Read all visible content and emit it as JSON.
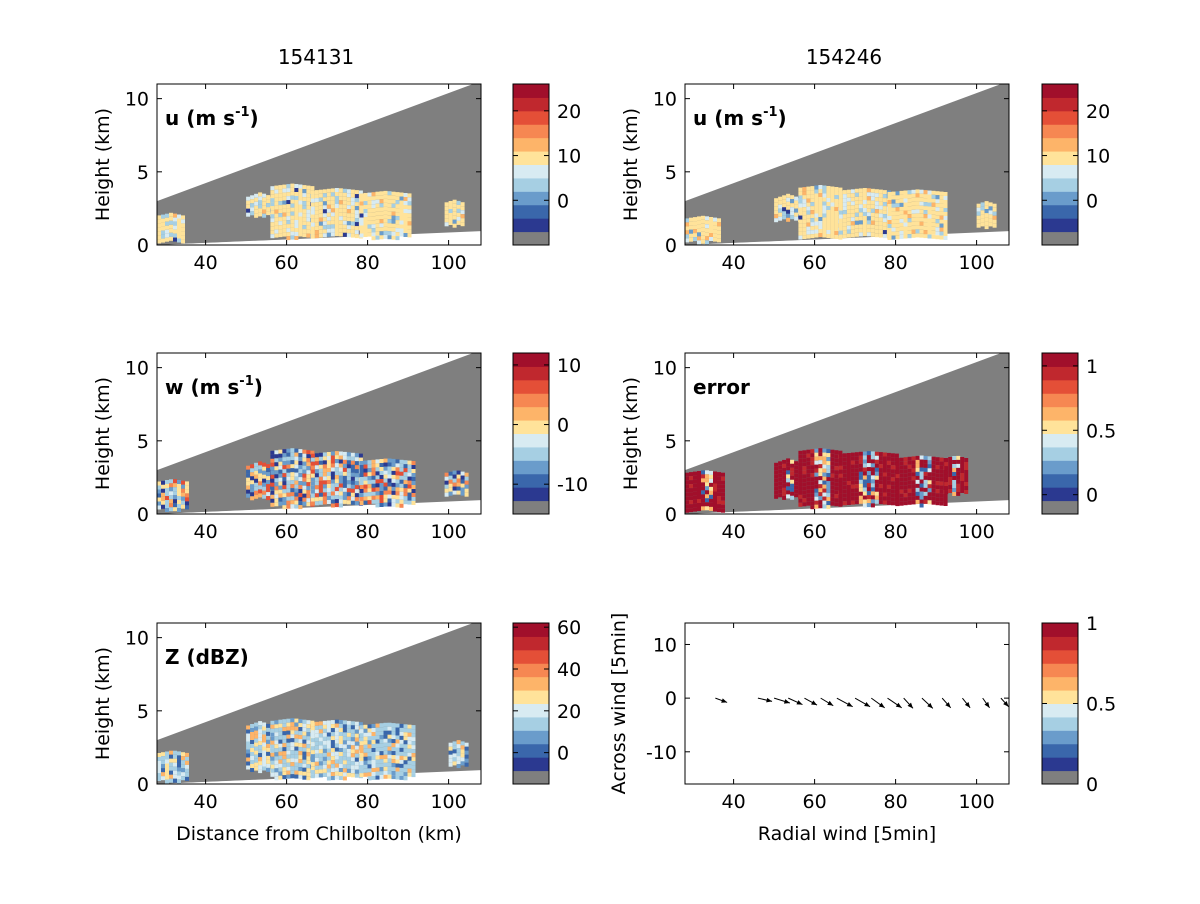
{
  "titles": [
    "154131",
    "154246"
  ],
  "colormap": [
    "#7f7f7f",
    "#2b3990",
    "#3a67ab",
    "#6a9ccb",
    "#a6cfe3",
    "#d8ebf2",
    "#ffe39a",
    "#fdb469",
    "#f68752",
    "#e44f37",
    "#c0282e",
    "#a10f2b"
  ],
  "chart_data": [
    {
      "type": "heatmap",
      "panel": "u-154131",
      "label": "u (m s",
      "label_sup": "-1",
      "ylabel": "Height (km)",
      "xlabel": "",
      "xlim": [
        28,
        108
      ],
      "ylim": [
        0,
        11
      ],
      "xticks": [
        "40",
        "60",
        "80",
        "100"
      ],
      "yticks": [
        "0",
        "5",
        "10"
      ],
      "colorbar": {
        "ticks": [
          "20",
          "10",
          "0"
        ],
        "tick_values": [
          20,
          10,
          0
        ],
        "range": [
          -10,
          26
        ]
      },
      "echo_regions": [
        [
          50,
          56,
          2.1,
          3.6
        ],
        [
          56,
          66,
          0.6,
          4.2
        ],
        [
          66,
          78,
          0.7,
          3.9
        ],
        [
          78,
          90,
          0.6,
          3.7
        ],
        [
          99,
          103,
          1.4,
          3.1
        ],
        [
          28,
          34,
          0.3,
          2.2
        ]
      ]
    },
    {
      "type": "heatmap",
      "panel": "u-154246",
      "label": "u (m s",
      "label_sup": "-1",
      "ylabel": "Height (km)",
      "xlabel": "",
      "xlim": [
        28,
        108
      ],
      "ylim": [
        0,
        11
      ],
      "xticks": [
        "40",
        "60",
        "80",
        "100"
      ],
      "yticks": [
        "0",
        "5",
        "10"
      ],
      "colorbar": {
        "ticks": [
          "20",
          "10",
          "0"
        ],
        "tick_values": [
          20,
          10,
          0
        ],
        "range": [
          -10,
          26
        ]
      },
      "echo_regions": [
        [
          50,
          56,
          1.8,
          3.5
        ],
        [
          56,
          66,
          0.6,
          4.1
        ],
        [
          66,
          78,
          0.7,
          3.9
        ],
        [
          78,
          92,
          0.6,
          3.8
        ],
        [
          100,
          104,
          1.3,
          3.0
        ],
        [
          28,
          36,
          0.3,
          2.0
        ]
      ]
    },
    {
      "type": "heatmap",
      "panel": "w-154131",
      "label": "w (m s",
      "label_sup": "-1",
      "ylabel": "Height (km)",
      "xlabel": "",
      "xlim": [
        28,
        108
      ],
      "ylim": [
        0,
        11
      ],
      "xticks": [
        "40",
        "60",
        "80",
        "100"
      ],
      "yticks": [
        "0",
        "5",
        "10"
      ],
      "colorbar": {
        "ticks": [
          "10",
          "0",
          "-10"
        ],
        "tick_values": [
          10,
          0,
          -10
        ],
        "range": [
          -15,
          12
        ]
      },
      "echo_regions": [
        [
          50,
          56,
          1.2,
          3.6
        ],
        [
          56,
          66,
          0.6,
          4.5
        ],
        [
          66,
          78,
          0.7,
          4.3
        ],
        [
          78,
          91,
          0.7,
          3.8
        ],
        [
          99,
          104,
          1.4,
          3.0
        ],
        [
          28,
          35,
          0.4,
          2.4
        ]
      ]
    },
    {
      "type": "heatmap",
      "panel": "error-154246",
      "label": "error",
      "label_sup": "",
      "ylabel": "Height (km)",
      "xlabel": "",
      "xlim": [
        28,
        108
      ],
      "ylim": [
        0,
        11
      ],
      "xticks": [
        "40",
        "60",
        "80",
        "100"
      ],
      "yticks": [
        "0",
        "5",
        "10"
      ],
      "colorbar": {
        "ticks": [
          "1",
          "0.5",
          "0"
        ],
        "tick_values": [
          1,
          0.5,
          0
        ],
        "range": [
          -0.15,
          1.1
        ]
      },
      "echo_regions": [
        [
          50,
          56,
          1.2,
          3.8
        ],
        [
          56,
          66,
          0.6,
          4.5
        ],
        [
          66,
          80,
          0.7,
          4.3
        ],
        [
          80,
          92,
          0.7,
          4.0
        ],
        [
          92,
          97,
          1.5,
          4.0
        ],
        [
          28,
          37,
          0.3,
          3.0
        ]
      ]
    },
    {
      "type": "heatmap",
      "panel": "Z-154131",
      "label": "Z (dBZ)",
      "label_sup": "",
      "ylabel": "Height (km)",
      "xlabel": "Distance from Chilbolton (km)",
      "xlim": [
        28,
        108
      ],
      "ylim": [
        0,
        11
      ],
      "xticks": [
        "40",
        "60",
        "80",
        "100"
      ],
      "yticks": [
        "0",
        "5",
        "10"
      ],
      "colorbar": {
        "ticks": [
          "60",
          "40",
          "20",
          "0"
        ],
        "tick_values": [
          60,
          40,
          20,
          0
        ],
        "range": [
          -15,
          62
        ]
      },
      "echo_regions": [
        [
          50,
          56,
          1.0,
          4.3
        ],
        [
          56,
          66,
          0.5,
          4.5
        ],
        [
          66,
          78,
          0.5,
          4.4
        ],
        [
          78,
          91,
          0.5,
          4.2
        ],
        [
          100,
          104,
          1.3,
          3.0
        ],
        [
          28,
          35,
          0.3,
          2.3
        ]
      ]
    },
    {
      "type": "scatter",
      "panel": "wind-vectors",
      "label": "",
      "label_sup": "",
      "ylabel": "Across wind [5min]",
      "xlabel": "Radial wind [5min]",
      "xlim": [
        28,
        108
      ],
      "ylim": [
        -16,
        14
      ],
      "xticks": [
        "40",
        "60",
        "80",
        "100"
      ],
      "yticks": [
        "-10",
        "0",
        "10"
      ],
      "colorbar": {
        "ticks": [
          "1",
          "0.5",
          "0"
        ],
        "tick_values": [
          1,
          0.5,
          0
        ],
        "range": [
          0,
          1
        ]
      },
      "arrows": [
        {
          "x": 35.5,
          "y": 0.0,
          "dx": 2.9,
          "dy": -0.8
        },
        {
          "x": 46.0,
          "y": 0.0,
          "dx": 3.5,
          "dy": -0.6
        },
        {
          "x": 50.0,
          "y": 0.0,
          "dx": 3.9,
          "dy": -0.9
        },
        {
          "x": 53.5,
          "y": 0.0,
          "dx": 3.5,
          "dy": -1.2
        },
        {
          "x": 57.5,
          "y": 0.0,
          "dx": 3.1,
          "dy": -1.3
        },
        {
          "x": 61.5,
          "y": 0.0,
          "dx": 3.1,
          "dy": -1.4
        },
        {
          "x": 65.5,
          "y": 0.0,
          "dx": 3.9,
          "dy": -1.6
        },
        {
          "x": 70.0,
          "y": 0.0,
          "dx": 3.7,
          "dy": -1.6
        },
        {
          "x": 74.0,
          "y": 0.0,
          "dx": 3.3,
          "dy": -1.8
        },
        {
          "x": 78.0,
          "y": 0.0,
          "dx": 3.5,
          "dy": -1.8
        },
        {
          "x": 82.0,
          "y": 0.0,
          "dx": 2.3,
          "dy": -1.9
        },
        {
          "x": 86.5,
          "y": 0.0,
          "dx": 2.7,
          "dy": -1.9
        },
        {
          "x": 91.5,
          "y": 0.0,
          "dx": 2.1,
          "dy": -1.8
        },
        {
          "x": 96.5,
          "y": 0.0,
          "dx": 1.9,
          "dy": -1.8
        },
        {
          "x": 101.5,
          "y": 0.0,
          "dx": 1.7,
          "dy": -1.8
        },
        {
          "x": 106.0,
          "y": 0.0,
          "dx": 1.9,
          "dy": -1.6
        }
      ]
    }
  ]
}
